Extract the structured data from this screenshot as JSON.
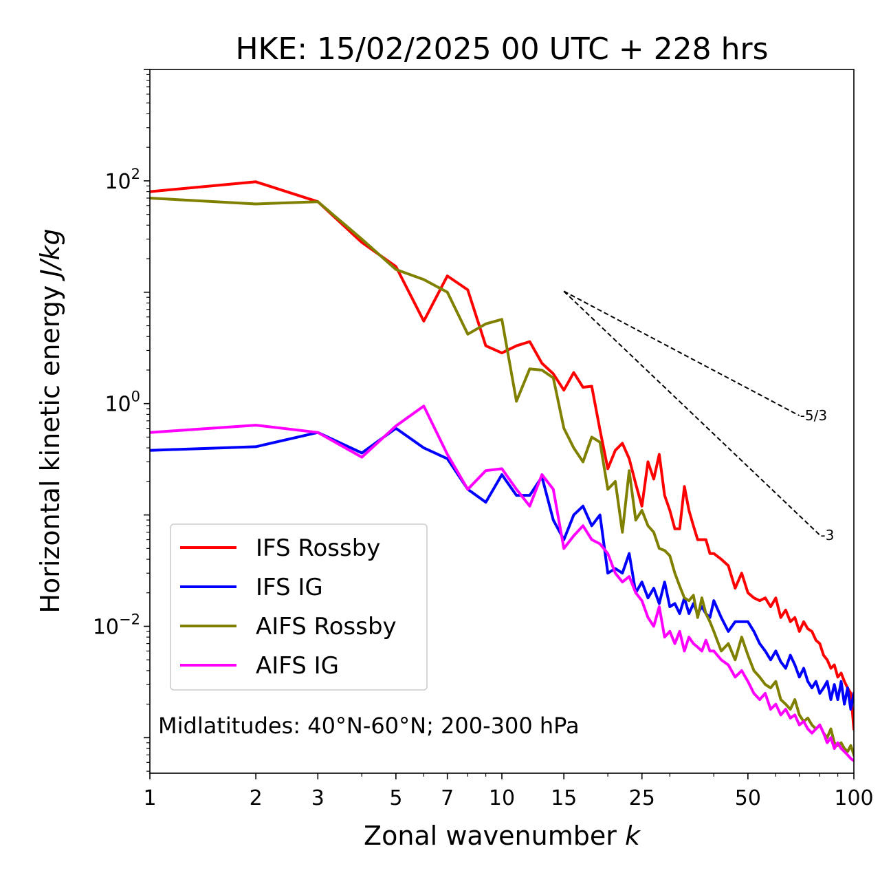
{
  "chart_data": {
    "type": "line",
    "title": "HKE: 15/02/2025 00 UTC + 228 hrs",
    "xlabel": "Zonal wavenumber k",
    "xlabel_text": "Zonal wavenumber ",
    "xlabel_var": "k",
    "ylabel": "Horizontal kinetic energy J/kg",
    "ylabel_text": "Horizontal kinetic energy ",
    "ylabel_unit": "J/kg",
    "xscale": "log",
    "yscale": "log",
    "xlim": [
      1,
      100
    ],
    "ylim": [
      0.00048,
      1000
    ],
    "xticks": [
      1,
      2,
      3,
      5,
      7,
      10,
      15,
      25,
      50,
      100
    ],
    "xtick_labels": [
      "1",
      "2",
      "3",
      "5",
      "7",
      "10",
      "15",
      "25",
      "50",
      "100"
    ],
    "yticks": [
      {
        "value": 100,
        "base": "10",
        "exp": "2"
      },
      {
        "value": 1,
        "base": "10",
        "exp": "0"
      },
      {
        "value": 0.01,
        "base": "10",
        "exp": "−2"
      }
    ],
    "grid": false,
    "legend_position": "lower-left",
    "annotation": "Midlatitudes: 40°N-60°N; 200-300 hPa",
    "reference_slopes": [
      {
        "label": "-5/3",
        "x": [
          15,
          70
        ],
        "y": [
          10.2,
          0.78
        ]
      },
      {
        "label": "-3",
        "x": [
          15,
          80
        ],
        "y": [
          10.2,
          0.066
        ]
      }
    ],
    "series": [
      {
        "name": "IFS Rossby",
        "color": "#ff0000",
        "x": [
          1,
          2,
          3,
          4,
          5,
          6,
          7,
          8,
          9,
          10,
          11,
          12,
          13,
          14,
          15,
          16,
          17,
          18,
          19,
          20,
          21,
          22,
          23,
          24,
          25,
          26,
          27,
          28,
          29,
          30,
          31,
          32,
          33,
          34,
          35,
          36,
          37,
          38,
          39,
          40,
          42,
          44,
          46,
          48,
          50,
          52,
          54,
          56,
          58,
          60,
          62,
          64,
          66,
          68,
          70,
          72,
          74,
          76,
          78,
          80,
          82,
          84,
          86,
          88,
          90,
          92,
          94,
          96,
          98,
          100
        ],
        "y": [
          80,
          98,
          65,
          28,
          17,
          5.5,
          14,
          10.5,
          3.3,
          2.85,
          3.3,
          3.6,
          2.3,
          1.85,
          1.32,
          1.9,
          1.4,
          1.43,
          0.58,
          0.26,
          0.38,
          0.44,
          0.32,
          0.19,
          0.12,
          0.3,
          0.21,
          0.35,
          0.15,
          0.11,
          0.075,
          0.075,
          0.18,
          0.11,
          0.08,
          0.06,
          0.06,
          0.06,
          0.045,
          0.045,
          0.04,
          0.035,
          0.022,
          0.03,
          0.02,
          0.018,
          0.017,
          0.018,
          0.015,
          0.018,
          0.012,
          0.014,
          0.011,
          0.012,
          0.009,
          0.011,
          0.0095,
          0.009,
          0.0075,
          0.007,
          0.0055,
          0.005,
          0.0042,
          0.0045,
          0.0035,
          0.0038,
          0.0032,
          0.0028,
          0.0025,
          0.0012
        ]
      },
      {
        "name": "IFS IG",
        "color": "#0000ff",
        "x": [
          1,
          2,
          3,
          4,
          5,
          6,
          7,
          8,
          9,
          10,
          11,
          12,
          13,
          14,
          15,
          16,
          17,
          18,
          19,
          20,
          21,
          22,
          23,
          24,
          25,
          26,
          27,
          28,
          29,
          30,
          31,
          32,
          33,
          34,
          35,
          36,
          37,
          38,
          39,
          40,
          42,
          44,
          46,
          48,
          50,
          52,
          54,
          56,
          58,
          60,
          62,
          64,
          66,
          68,
          70,
          72,
          74,
          76,
          78,
          80,
          82,
          84,
          86,
          88,
          90,
          92,
          94,
          96,
          98,
          100
        ],
        "y": [
          0.38,
          0.41,
          0.55,
          0.36,
          0.6,
          0.4,
          0.32,
          0.17,
          0.13,
          0.23,
          0.15,
          0.15,
          0.22,
          0.09,
          0.06,
          0.1,
          0.12,
          0.08,
          0.1,
          0.03,
          0.033,
          0.03,
          0.045,
          0.02,
          0.025,
          0.018,
          0.022,
          0.016,
          0.025,
          0.015,
          0.016,
          0.013,
          0.018,
          0.013,
          0.016,
          0.013,
          0.015,
          0.013,
          0.012,
          0.017,
          0.012,
          0.009,
          0.011,
          0.011,
          0.011,
          0.009,
          0.007,
          0.006,
          0.005,
          0.006,
          0.0048,
          0.0042,
          0.0055,
          0.0045,
          0.0035,
          0.0042,
          0.0032,
          0.0028,
          0.0032,
          0.0025,
          0.0028,
          0.0032,
          0.0022,
          0.003,
          0.0022,
          0.0032,
          0.002,
          0.0028,
          0.0018,
          0.0025
        ]
      },
      {
        "name": "AIFS Rossby",
        "color": "#808000",
        "x": [
          1,
          2,
          3,
          4,
          5,
          6,
          7,
          8,
          9,
          10,
          11,
          12,
          13,
          14,
          15,
          16,
          17,
          18,
          19,
          20,
          21,
          22,
          23,
          24,
          25,
          26,
          27,
          28,
          29,
          30,
          31,
          32,
          33,
          34,
          35,
          36,
          37,
          38,
          39,
          40,
          42,
          44,
          46,
          48,
          50,
          52,
          54,
          56,
          58,
          60,
          62,
          64,
          66,
          68,
          70,
          72,
          74,
          76,
          78,
          80,
          82,
          84,
          86,
          88,
          90,
          92,
          94,
          96,
          98,
          100
        ],
        "y": [
          70,
          62,
          65,
          30,
          16,
          13,
          10,
          4.2,
          5.2,
          5.7,
          1.05,
          2.05,
          2.0,
          1.7,
          0.6,
          0.4,
          0.3,
          0.5,
          0.45,
          0.17,
          0.2,
          0.07,
          0.25,
          0.09,
          0.11,
          0.08,
          0.07,
          0.05,
          0.048,
          0.043,
          0.03,
          0.023,
          0.018,
          0.017,
          0.019,
          0.012,
          0.018,
          0.013,
          0.011,
          0.009,
          0.006,
          0.007,
          0.005,
          0.008,
          0.0055,
          0.004,
          0.0035,
          0.003,
          0.0028,
          0.0032,
          0.0022,
          0.002,
          0.0018,
          0.0022,
          0.0016,
          0.0014,
          0.0015,
          0.0013,
          0.0012,
          0.0013,
          0.0011,
          0.001,
          0.0012,
          0.0009,
          0.00085,
          0.0009,
          0.0008,
          0.00075,
          0.00085,
          0.0007
        ]
      },
      {
        "name": "AIFS IG",
        "color": "#ff00ff",
        "x": [
          1,
          2,
          3,
          4,
          5,
          6,
          7,
          8,
          9,
          10,
          11,
          12,
          13,
          14,
          15,
          16,
          17,
          18,
          19,
          20,
          21,
          22,
          23,
          24,
          25,
          26,
          27,
          28,
          29,
          30,
          31,
          32,
          33,
          34,
          35,
          36,
          37,
          38,
          39,
          40,
          42,
          44,
          46,
          48,
          50,
          52,
          54,
          56,
          58,
          60,
          62,
          64,
          66,
          68,
          70,
          72,
          74,
          76,
          78,
          80,
          82,
          84,
          86,
          88,
          90,
          92,
          94,
          96,
          98,
          100
        ],
        "y": [
          0.55,
          0.64,
          0.55,
          0.33,
          0.63,
          0.95,
          0.35,
          0.17,
          0.25,
          0.26,
          0.17,
          0.12,
          0.23,
          0.17,
          0.05,
          0.065,
          0.08,
          0.06,
          0.055,
          0.045,
          0.03,
          0.025,
          0.028,
          0.02,
          0.017,
          0.012,
          0.01,
          0.015,
          0.008,
          0.009,
          0.007,
          0.009,
          0.006,
          0.008,
          0.007,
          0.0065,
          0.006,
          0.0075,
          0.006,
          0.006,
          0.005,
          0.0045,
          0.0035,
          0.004,
          0.0032,
          0.0025,
          0.0022,
          0.0025,
          0.0018,
          0.002,
          0.0016,
          0.0018,
          0.0015,
          0.0016,
          0.0013,
          0.0014,
          0.0012,
          0.0011,
          0.0012,
          0.0013,
          0.0011,
          0.0009,
          0.001,
          0.0008,
          0.0009,
          0.0008,
          0.00075,
          0.0007,
          0.00065,
          0.00062
        ]
      }
    ]
  }
}
